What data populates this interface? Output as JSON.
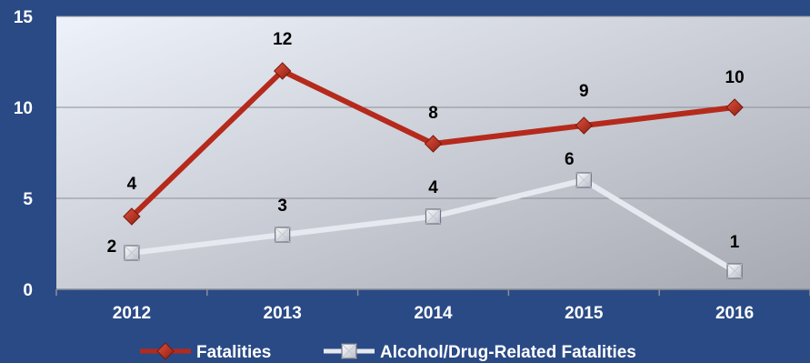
{
  "chart_data": {
    "type": "line",
    "categories": [
      "2012",
      "2013",
      "2014",
      "2015",
      "2016"
    ],
    "ylim": [
      0,
      15
    ],
    "yticks": [
      0,
      5,
      10,
      15
    ],
    "grid": true,
    "legend_position": "bottom",
    "series": [
      {
        "name": "Fatalities",
        "values": [
          4,
          12,
          8,
          9,
          10
        ],
        "color": "#b52a1c",
        "marker": "diamond"
      },
      {
        "name": "Alcohol/Drug-Related Fatalities",
        "values": [
          2,
          3,
          4,
          6,
          1
        ],
        "color": "#e6e9f0",
        "marker": "square"
      }
    ]
  },
  "colors": {
    "background": "#2a4a86",
    "plot_area_light": "#eef2fa",
    "plot_area_dark": "#a6a9b1",
    "text": "#ffffff",
    "data_label": "#000000"
  }
}
